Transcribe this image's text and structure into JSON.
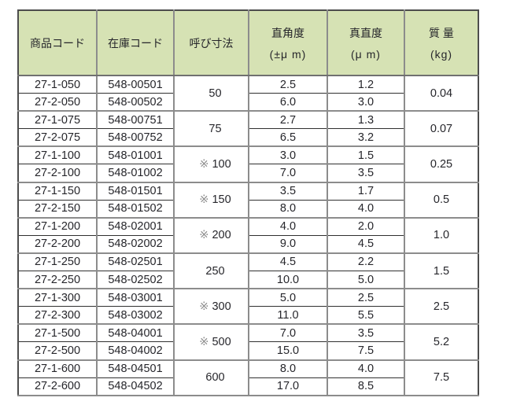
{
  "colors": {
    "header_bg": "#d6e2b4",
    "grid_gray": "#8c8c8c",
    "outer_border": "#4d4d4d",
    "text": "#26262b",
    "note_mark_gray": "#8f8f8f"
  },
  "table": {
    "note_mark": "※",
    "headers": [
      {
        "line1": "商品コード",
        "line2": ""
      },
      {
        "line1": "在庫コード",
        "line2": ""
      },
      {
        "line1": "呼び寸法",
        "line2": ""
      },
      {
        "line1": "直角度",
        "line2": "(±μ m)"
      },
      {
        "line1": "真直度",
        "line2": "(μ m)"
      },
      {
        "line1": "質 量",
        "line2": "(kg)"
      }
    ],
    "groups": [
      {
        "size": "50",
        "size_note": false,
        "mass": "0.04",
        "rows": [
          {
            "code": "27-1-050",
            "stock": "548-00501",
            "squareness": "2.5",
            "straightness": "1.2"
          },
          {
            "code": "27-2-050",
            "stock": "548-00502",
            "squareness": "6.0",
            "straightness": "3.0"
          }
        ]
      },
      {
        "size": "75",
        "size_note": false,
        "mass": "0.07",
        "rows": [
          {
            "code": "27-1-075",
            "stock": "548-00751",
            "squareness": "2.7",
            "straightness": "1.3"
          },
          {
            "code": "27-2-075",
            "stock": "548-00752",
            "squareness": "6.5",
            "straightness": "3.2"
          }
        ]
      },
      {
        "size": "100",
        "size_note": true,
        "mass": "0.25",
        "rows": [
          {
            "code": "27-1-100",
            "stock": "548-01001",
            "squareness": "3.0",
            "straightness": "1.5"
          },
          {
            "code": "27-2-100",
            "stock": "548-01002",
            "squareness": "7.0",
            "straightness": "3.5"
          }
        ]
      },
      {
        "size": "150",
        "size_note": true,
        "mass": "0.5",
        "rows": [
          {
            "code": "27-1-150",
            "stock": "548-01501",
            "squareness": "3.5",
            "straightness": "1.7"
          },
          {
            "code": "27-2-150",
            "stock": "548-01502",
            "squareness": "8.0",
            "straightness": "4.0"
          }
        ]
      },
      {
        "size": "200",
        "size_note": true,
        "mass": "1.0",
        "rows": [
          {
            "code": "27-1-200",
            "stock": "548-02001",
            "squareness": "4.0",
            "straightness": "2.0"
          },
          {
            "code": "27-2-200",
            "stock": "548-02002",
            "squareness": "9.0",
            "straightness": "4.5"
          }
        ]
      },
      {
        "size": "250",
        "size_note": false,
        "mass": "1.5",
        "rows": [
          {
            "code": "27-1-250",
            "stock": "548-02501",
            "squareness": "4.5",
            "straightness": "2.2"
          },
          {
            "code": "27-2-250",
            "stock": "548-02502",
            "squareness": "10.0",
            "straightness": "5.0"
          }
        ]
      },
      {
        "size": "300",
        "size_note": true,
        "mass": "2.5",
        "rows": [
          {
            "code": "27-1-300",
            "stock": "548-03001",
            "squareness": "5.0",
            "straightness": "2.5"
          },
          {
            "code": "27-2-300",
            "stock": "548-03002",
            "squareness": "11.0",
            "straightness": "5.5"
          }
        ]
      },
      {
        "size": "500",
        "size_note": true,
        "mass": "5.2",
        "rows": [
          {
            "code": "27-1-500",
            "stock": "548-04001",
            "squareness": "7.0",
            "straightness": "3.5"
          },
          {
            "code": "27-2-500",
            "stock": "548-04002",
            "squareness": "15.0",
            "straightness": "7.5"
          }
        ]
      },
      {
        "size": "600",
        "size_note": false,
        "mass": "7.5",
        "rows": [
          {
            "code": "27-1-600",
            "stock": "548-04501",
            "squareness": "8.0",
            "straightness": "4.0"
          },
          {
            "code": "27-2-600",
            "stock": "548-04502",
            "squareness": "17.0",
            "straightness": "8.5"
          }
        ]
      }
    ]
  }
}
